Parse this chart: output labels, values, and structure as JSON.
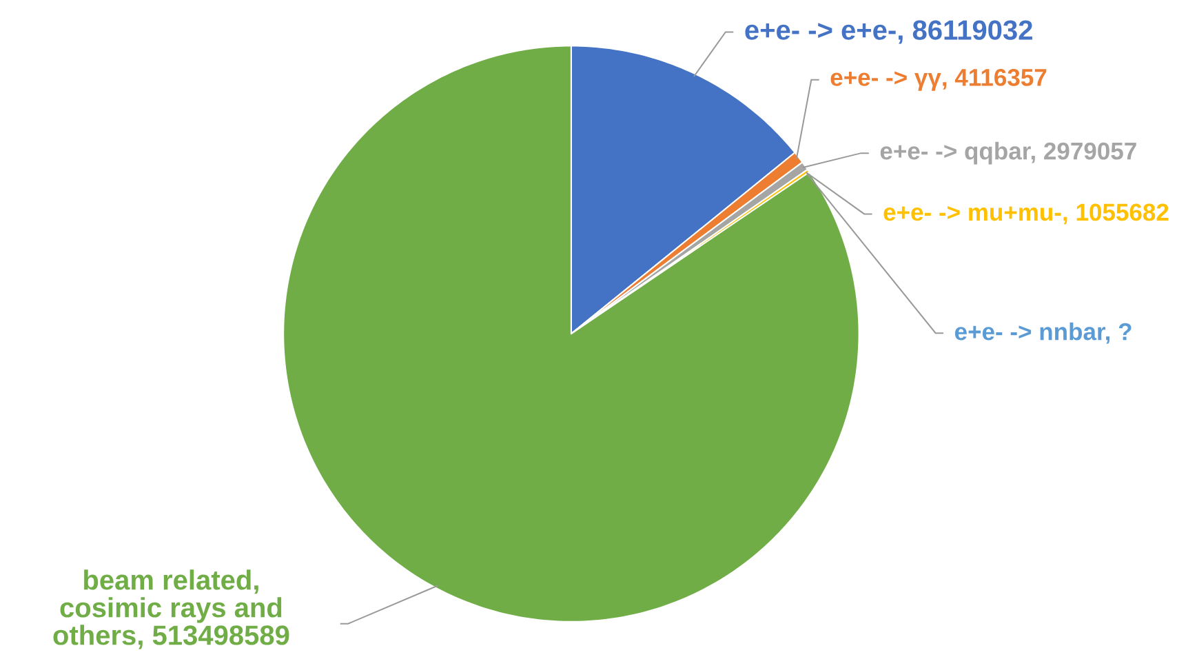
{
  "chart_data": {
    "type": "pie",
    "categories": [
      "e+e- -> e+e-, 86119032",
      "e+e- -> γγ, 4116357",
      "e+e- -> qqbar, 2979057",
      "e+e- -> mu+mu-, 1055682",
      "e+e- -> nnbar, ?",
      "beam related, cosimic rays and others, 513498589"
    ],
    "values": [
      86119032,
      4116357,
      2979057,
      1055682,
      null,
      513498589
    ],
    "colors": [
      "#4472c4",
      "#ed7d31",
      "#a5a5a5",
      "#ffc000",
      "#5b9bd5",
      "#70ad47"
    ]
  }
}
